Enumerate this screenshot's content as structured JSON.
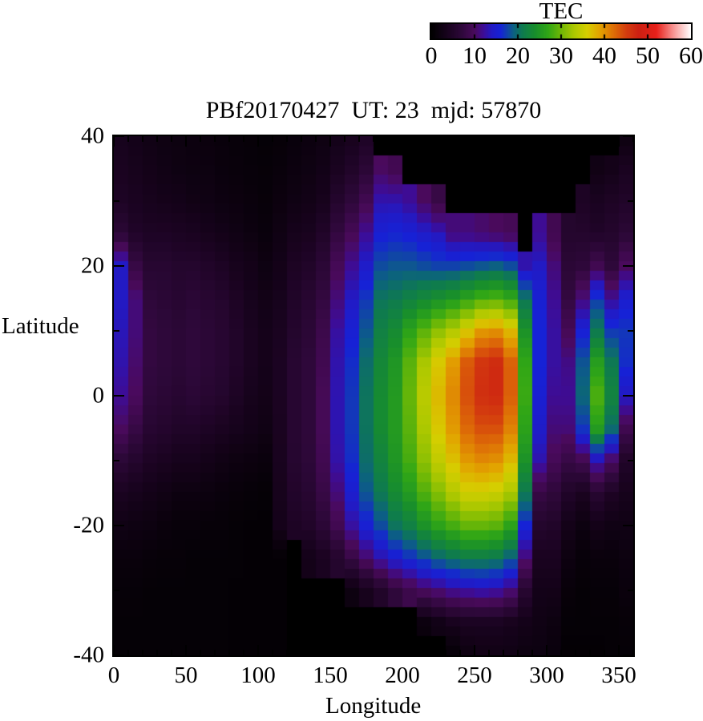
{
  "title": "PBf20170427  UT: 23  mjd: 57870",
  "colorbar": {
    "title": "TEC",
    "tick_labels": [
      "0",
      "10",
      "20",
      "30",
      "40",
      "50",
      "60"
    ],
    "min": 0,
    "max": 60
  },
  "axes": {
    "x_label": "Longitude",
    "y_label": "Latitude",
    "x_tick_labels": [
      "0",
      "50",
      "100",
      "150",
      "200",
      "250",
      "300",
      "350"
    ],
    "x_tick_values": [
      0,
      50,
      100,
      150,
      200,
      250,
      300,
      350
    ],
    "y_tick_labels": [
      "40",
      "20",
      "0",
      "-20",
      "-40"
    ],
    "y_tick_values": [
      40,
      20,
      0,
      -20,
      -40
    ],
    "x_range": [
      0,
      360
    ],
    "y_range": [
      -40,
      40
    ]
  },
  "chart_data": {
    "type": "heatmap",
    "title": "PBf20170427  UT: 23  mjd: 57870",
    "xlabel": "Longitude",
    "ylabel": "Latitude",
    "colorbar_label": "TEC",
    "value_range": [
      0,
      60
    ],
    "x_range": [
      0,
      360
    ],
    "y_range": [
      -40,
      40
    ],
    "lon_bin_deg": 10,
    "lat_samples": [
      40,
      35,
      30,
      25,
      20,
      15,
      10,
      5,
      0,
      -5,
      -10,
      -15,
      -20,
      -25,
      -30,
      -35,
      -40
    ],
    "grid_note": "columns west-to-east (0-350 deg, 10 deg bins); each column lists TEC from lat +40 down to -40; 0 = no data (black)",
    "columns": [
      [
        3.5,
        4,
        4.5,
        6.5,
        14,
        14,
        13.5,
        13,
        12,
        10,
        6.5,
        4,
        2.5,
        1.5,
        1,
        0.8,
        0.8
      ],
      [
        3,
        3.5,
        4,
        5,
        8,
        11,
        11,
        10.5,
        10,
        8,
        5.5,
        3.5,
        2.2,
        1.5,
        1,
        0.8,
        0.8
      ],
      [
        2.5,
        3,
        3.5,
        4.5,
        6,
        7,
        7.5,
        7.5,
        7,
        6,
        4.5,
        3,
        2,
        1.2,
        0.8,
        0.8,
        0.8
      ],
      [
        2.2,
        2.6,
        3.2,
        4.5,
        6,
        6.5,
        7,
        7,
        6.5,
        5.5,
        4,
        2.5,
        1.5,
        1,
        0.8,
        0.8,
        0.8
      ],
      [
        2,
        2.2,
        3,
        4.2,
        5.5,
        6,
        6.5,
        6.5,
        6,
        5,
        3.5,
        2,
        1.2,
        1,
        0.8,
        0.8,
        0.8
      ],
      [
        1.8,
        2,
        2.6,
        4,
        5.5,
        6.5,
        7,
        7,
        6.5,
        5,
        3.5,
        2,
        1.2,
        0.8,
        0.8,
        0.8,
        0.8
      ],
      [
        1.6,
        2,
        2.4,
        3.5,
        5,
        6,
        6.5,
        6.5,
        6,
        4.5,
        3,
        1.8,
        1,
        0.8,
        0.8,
        0.8,
        0.8
      ],
      [
        1.4,
        1.6,
        2,
        3,
        4.5,
        5.5,
        6,
        6,
        5.5,
        4,
        2.5,
        1.5,
        1,
        0.8,
        0.8,
        0.8,
        0.8
      ],
      [
        1.2,
        1.4,
        1.8,
        2.5,
        3.5,
        4.5,
        5,
        5,
        4.5,
        3.5,
        2,
        1.2,
        0.8,
        0.8,
        0.6,
        0.6,
        0.6
      ],
      [
        1,
        1.2,
        1.5,
        2,
        3,
        3.5,
        4,
        4,
        3.5,
        3,
        1.8,
        1,
        0.6,
        0.6,
        0.6,
        0.6,
        0.6
      ],
      [
        0.8,
        1,
        1.2,
        1.5,
        2.2,
        2.8,
        3.2,
        3.2,
        3,
        2.5,
        1.5,
        0.8,
        0.6,
        0.6,
        0.6,
        0.6,
        0.6
      ],
      [
        1,
        1.4,
        1.8,
        2.4,
        3,
        3.5,
        4,
        4.2,
        4.2,
        4,
        3.8,
        3.5,
        3.2,
        0.6,
        0.6,
        0.6,
        0.6
      ],
      [
        1.4,
        1.8,
        2.4,
        3.4,
        4.4,
        5,
        5.5,
        6,
        6,
        6,
        5.8,
        5.2,
        4.5,
        0,
        0,
        0,
        0
      ],
      [
        1.8,
        2.2,
        2.8,
        3.8,
        5,
        6,
        6.5,
        7,
        7,
        7,
        6.8,
        6,
        5,
        3,
        0,
        0,
        0
      ],
      [
        2.2,
        2.8,
        3.6,
        5,
        6.5,
        7.5,
        8.5,
        9,
        9.5,
        9.5,
        9,
        8,
        6.5,
        4,
        0,
        0,
        0
      ],
      [
        3,
        4,
        5.5,
        7.5,
        9.5,
        11,
        12.5,
        13,
        13.2,
        13.2,
        12.8,
        11,
        9,
        5.5,
        0,
        0,
        0
      ],
      [
        3.6,
        5,
        7,
        9.5,
        12,
        14,
        15.5,
        16.5,
        17,
        17,
        16.5,
        15,
        12.5,
        8,
        2,
        0,
        0
      ],
      [
        4.5,
        6.5,
        9,
        12,
        14.5,
        17,
        18.5,
        20,
        20.5,
        20.5,
        20,
        18.5,
        15.5,
        10.5,
        3.5,
        0,
        0
      ],
      [
        0,
        10,
        13,
        15.5,
        18,
        20.5,
        22,
        23,
        23.5,
        23.5,
        22.5,
        21,
        18,
        13,
        5,
        0,
        0
      ],
      [
        0,
        9,
        13,
        16,
        18.5,
        21,
        23.5,
        25,
        25.5,
        25.5,
        25,
        23.5,
        20.5,
        15,
        7,
        0,
        0
      ],
      [
        0,
        0,
        12,
        15.5,
        18.5,
        22,
        26.5,
        29,
        29.5,
        29,
        28,
        25.5,
        22,
        16.5,
        8.5,
        0,
        0
      ],
      [
        0,
        0,
        10,
        14.5,
        18,
        23,
        29,
        33,
        34,
        33,
        31.5,
        28.5,
        24.5,
        18,
        10,
        1.5,
        0
      ],
      [
        0,
        0,
        8,
        13.5,
        17.5,
        24,
        31.5,
        36.5,
        37.5,
        36.5,
        34.5,
        31,
        26.5,
        19.5,
        11,
        2.5,
        0
      ],
      [
        0,
        0,
        0,
        11,
        17.5,
        25,
        33.5,
        39.5,
        40.5,
        39.5,
        37,
        33.5,
        28,
        20.5,
        12,
        3.5,
        0.8
      ],
      [
        0,
        0,
        0,
        11,
        18,
        26.5,
        36.5,
        43.5,
        44,
        42.5,
        39.5,
        35.5,
        29.5,
        21.5,
        12.5,
        4,
        2
      ],
      [
        0,
        0,
        0,
        10.5,
        18.5,
        28,
        39.5,
        46,
        46.5,
        44,
        40.5,
        35.5,
        29.5,
        21.5,
        13,
        4,
        2.5
      ],
      [
        0,
        0,
        0,
        10,
        19,
        28.5,
        40,
        47,
        47,
        44,
        40,
        35,
        29,
        21,
        12.5,
        4,
        2.5
      ],
      [
        0,
        0,
        0,
        9.5,
        18,
        27,
        37.5,
        43,
        43,
        41,
        37.5,
        33,
        26.5,
        19,
        11,
        3.5,
        2.5
      ],
      [
        0,
        0,
        0,
        0,
        13,
        20.5,
        24.5,
        27,
        27.5,
        26.5,
        24.5,
        21,
        16,
        11,
        6,
        3,
        2
      ],
      [
        0,
        0,
        0,
        12,
        14,
        15.5,
        16,
        16,
        15.5,
        14.5,
        13,
        8,
        5.5,
        4,
        3,
        2.5,
        2
      ],
      [
        0,
        0,
        0,
        9,
        11,
        12,
        12.5,
        12.5,
        12,
        11,
        9.5,
        7,
        5,
        4,
        3,
        2,
        1.5
      ],
      [
        0,
        0,
        0,
        5.5,
        6.5,
        7.5,
        9.5,
        11.5,
        12,
        11,
        8,
        5,
        3,
        2,
        1.2,
        0.8,
        0.5
      ],
      [
        0,
        0,
        4.5,
        5.5,
        7,
        11,
        15.5,
        18.5,
        19.5,
        17,
        9,
        4,
        2,
        1.2,
        0.8,
        0.8,
        0.5
      ],
      [
        0,
        2.5,
        4,
        5,
        9,
        17,
        21,
        26,
        28.5,
        26,
        13,
        6,
        3,
        1.5,
        1,
        0.8,
        0.5
      ],
      [
        0,
        3,
        4.5,
        5.5,
        7,
        12,
        17,
        21,
        22.5,
        20,
        10,
        4.5,
        2.5,
        1.5,
        1,
        0.8,
        0.8
      ],
      [
        2,
        4,
        5,
        6.5,
        10,
        15,
        17,
        16.5,
        14,
        9,
        5,
        3.5,
        2.5,
        2,
        1.5,
        1,
        0.8
      ]
    ],
    "colormap_stops": [
      [
        0,
        0,
        0,
        0
      ],
      [
        4,
        26,
        3,
        32
      ],
      [
        7,
        46,
        8,
        58
      ],
      [
        10,
        74,
        10,
        92
      ],
      [
        12,
        62,
        12,
        148
      ],
      [
        14,
        34,
        26,
        196
      ],
      [
        16,
        22,
        34,
        214
      ],
      [
        19,
        12,
        96,
        130
      ],
      [
        21,
        14,
        122,
        80
      ],
      [
        24,
        24,
        142,
        44
      ],
      [
        27,
        48,
        166,
        22
      ],
      [
        30,
        112,
        184,
        6
      ],
      [
        33,
        172,
        200,
        0
      ],
      [
        36,
        214,
        206,
        0
      ],
      [
        39,
        226,
        162,
        0
      ],
      [
        42,
        222,
        112,
        6
      ],
      [
        45,
        212,
        62,
        14
      ],
      [
        48,
        204,
        32,
        18
      ],
      [
        52,
        232,
        32,
        26
      ],
      [
        56,
        248,
        150,
        148
      ],
      [
        60,
        255,
        255,
        255
      ]
    ],
    "legend_position": "top",
    "grid": false
  }
}
